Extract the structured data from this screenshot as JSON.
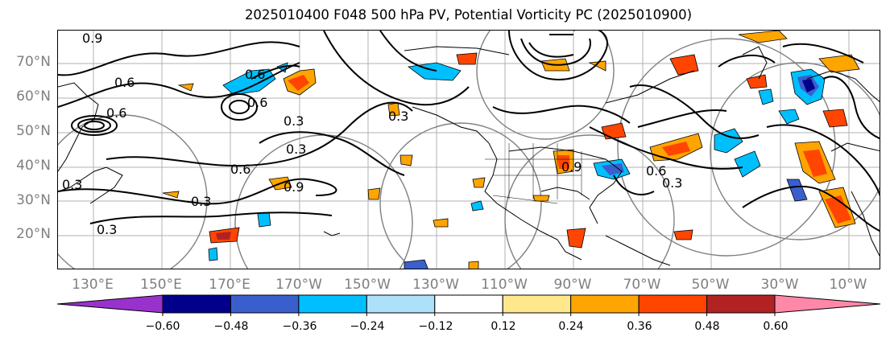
{
  "title": "2025010400 F048 500 hPa PV, Potential Vorticity PC (2025010900)",
  "map": {
    "lat_labels": [
      "70°N",
      "60°N",
      "50°N",
      "40°N",
      "30°N",
      "20°N"
    ],
    "lon_labels": [
      "130°E",
      "150°E",
      "170°E",
      "170°W",
      "150°W",
      "130°W",
      "110°W",
      "90°W",
      "70°W",
      "50°W",
      "30°W",
      "10°W"
    ],
    "contour_labels": [
      "0.9",
      "0.6",
      "0.6",
      "0.6",
      "0.3",
      "0.3",
      "0.6",
      "0.9",
      "0.3",
      "0.3",
      "0.3",
      "0.6",
      "0.3",
      "0.6",
      "0.9",
      "0.3"
    ],
    "colors": {
      "neg_strong": "#00008b",
      "neg_mid": "#3a5fcd",
      "neg_light": "#00bfff",
      "pos_light": "#ffa500",
      "pos_mid": "#ff4500",
      "pos_strong": "#b22222"
    }
  },
  "colorbar": {
    "tick_labels": [
      "−0.60",
      "−0.48",
      "−0.36",
      "−0.24",
      "−0.12",
      "0.12",
      "0.24",
      "0.36",
      "0.48",
      "0.60"
    ],
    "colors": [
      "#9932cc",
      "#00008b",
      "#3a5fcd",
      "#00bfff",
      "#aee0fa",
      "#ffffff",
      "#ffe88c",
      "#ffa500",
      "#ff4500",
      "#b22222",
      "#ff88a8"
    ]
  }
}
